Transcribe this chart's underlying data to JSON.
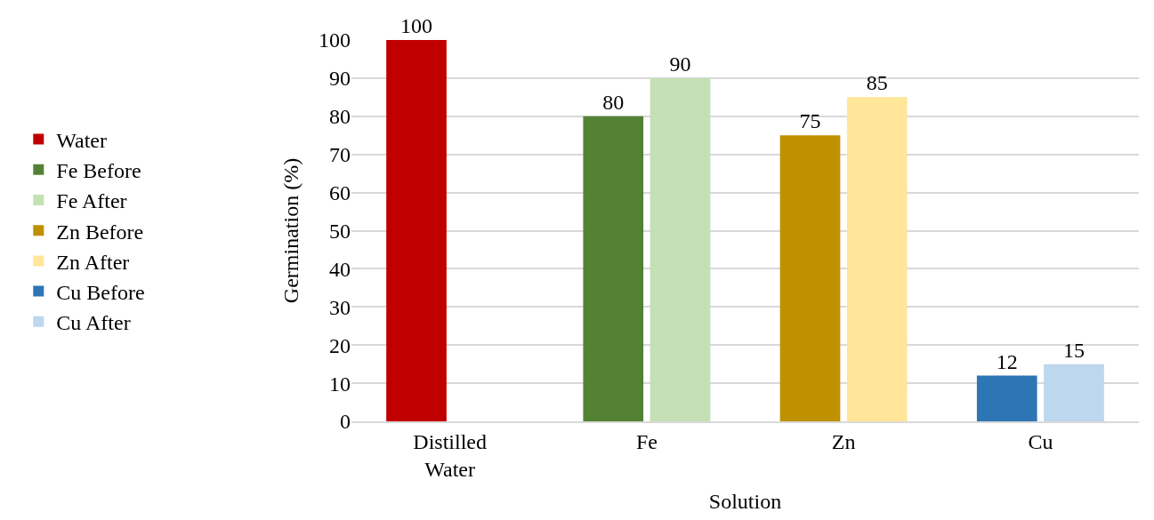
{
  "chart_data": {
    "type": "bar",
    "xlabel": "Solution",
    "ylabel": "Germination (%)",
    "categories": [
      "Distilled Water",
      "Fe",
      "Zn",
      "Cu"
    ],
    "series": [
      {
        "name": "Water",
        "color": "#c00000",
        "values": [
          100,
          null,
          null,
          null
        ]
      },
      {
        "name": "Fe Before",
        "color": "#548235",
        "values": [
          null,
          80,
          null,
          null
        ]
      },
      {
        "name": "Fe After",
        "color": "#c5e0b4",
        "values": [
          null,
          90,
          null,
          null
        ]
      },
      {
        "name": "Zn Before",
        "color": "#bf9000",
        "values": [
          null,
          null,
          75,
          null
        ]
      },
      {
        "name": "Zn After",
        "color": "#ffe699",
        "values": [
          null,
          null,
          85,
          null
        ]
      },
      {
        "name": "Cu Before",
        "color": "#2e75b6",
        "values": [
          null,
          null,
          null,
          12
        ]
      },
      {
        "name": "Cu After",
        "color": "#bdd7ee",
        "values": [
          null,
          null,
          null,
          15
        ]
      }
    ],
    "ylim": [
      0,
      100
    ],
    "yticks": [
      0,
      10,
      20,
      30,
      40,
      50,
      60,
      70,
      80,
      90,
      100
    ],
    "grid": "y",
    "legend": "left",
    "data_labels": true
  }
}
